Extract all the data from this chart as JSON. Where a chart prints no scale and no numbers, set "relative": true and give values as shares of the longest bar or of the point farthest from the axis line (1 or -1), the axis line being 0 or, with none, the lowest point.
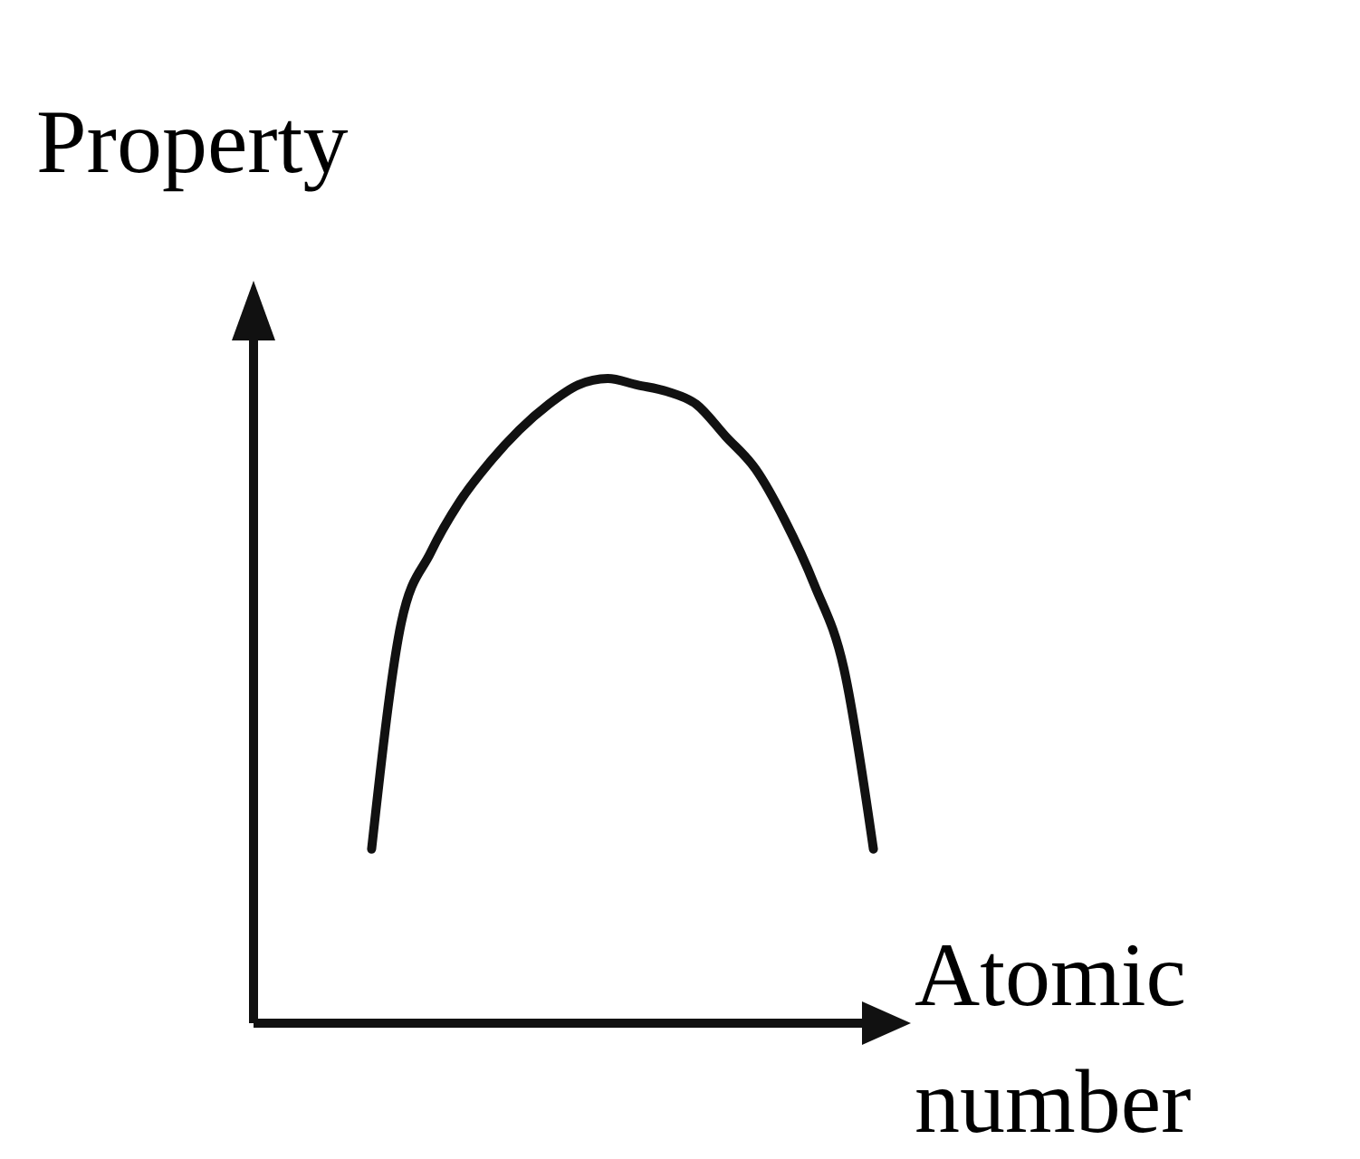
{
  "chart_data": {
    "type": "line",
    "relative": true,
    "xlabel": "Atomic number",
    "ylabel": "Property",
    "categories": [
      null,
      null,
      null,
      null,
      null,
      null,
      null,
      null,
      null,
      null,
      null,
      null,
      null,
      null,
      null,
      null,
      null,
      null,
      null,
      null,
      null,
      null,
      null
    ],
    "series": [
      {
        "color": "#111111",
        "values": [
          null,
          null,
          null,
          null,
          0.27,
          0.62,
          0.73,
          0.81,
          0.87,
          0.92,
          0.96,
          0.99,
          1.0,
          0.99,
          0.98,
          0.96,
          0.91,
          0.86,
          0.78,
          0.68,
          0.55,
          0.27,
          null
        ]
      }
    ]
  }
}
